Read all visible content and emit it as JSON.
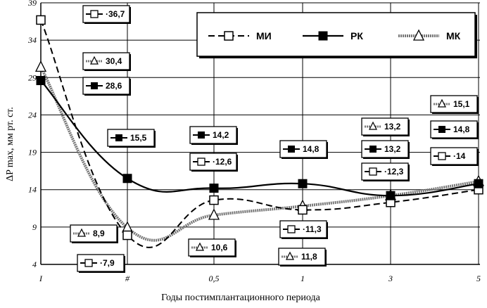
{
  "chart_data": {
    "type": "line",
    "categories": [
      "I",
      "#",
      "0,5",
      "1",
      "3",
      "5"
    ],
    "ylim": [
      4,
      39
    ],
    "yticks": [
      4,
      9,
      14,
      19,
      24,
      29,
      34,
      39
    ],
    "ylabel": "ΔP max, мм рт. ст.",
    "xlabel": "Годы постимплантационного периода",
    "legend_position": "top-right",
    "grid": true,
    "series": [
      {
        "name": "МИ",
        "marker": "open-square",
        "style": "dashed",
        "values": [
          36.7,
          7.9,
          12.6,
          11.3,
          12.3,
          14.0
        ]
      },
      {
        "name": "РК",
        "marker": "filled-square",
        "style": "solid",
        "values": [
          28.6,
          15.5,
          14.2,
          14.8,
          13.2,
          14.8
        ]
      },
      {
        "name": "МК",
        "marker": "open-triangle",
        "style": "hatched",
        "values": [
          30.4,
          8.9,
          10.6,
          11.8,
          13.2,
          15.1
        ]
      }
    ],
    "data_labels": [
      {
        "series": 0,
        "index": 0,
        "text": "·36,7"
      },
      {
        "series": 2,
        "index": 0,
        "text": "30,4"
      },
      {
        "series": 1,
        "index": 0,
        "text": "28,6"
      },
      {
        "series": 1,
        "index": 1,
        "text": "15,5"
      },
      {
        "series": 2,
        "index": 1,
        "text": "8,9"
      },
      {
        "series": 0,
        "index": 1,
        "text": "·7,9"
      },
      {
        "series": 1,
        "index": 2,
        "text": "14,2"
      },
      {
        "series": 0,
        "index": 2,
        "text": "·12,6"
      },
      {
        "series": 2,
        "index": 2,
        "text": "10,6"
      },
      {
        "series": 1,
        "index": 3,
        "text": "14,8"
      },
      {
        "series": 0,
        "index": 3,
        "text": "·11,3"
      },
      {
        "series": 2,
        "index": 3,
        "text": "11,8"
      },
      {
        "series": 2,
        "index": 4,
        "text": "13,2"
      },
      {
        "series": 1,
        "index": 4,
        "text": "13,2"
      },
      {
        "series": 0,
        "index": 4,
        "text": "·12,3"
      },
      {
        "series": 2,
        "index": 5,
        "text": "15,1"
      },
      {
        "series": 1,
        "index": 5,
        "text": "14,8"
      },
      {
        "series": 0,
        "index": 5,
        "text": "·14"
      }
    ]
  },
  "colors": {
    "lines": "#000000",
    "hatch": "#7a7a7a",
    "background": "#ffffff"
  }
}
